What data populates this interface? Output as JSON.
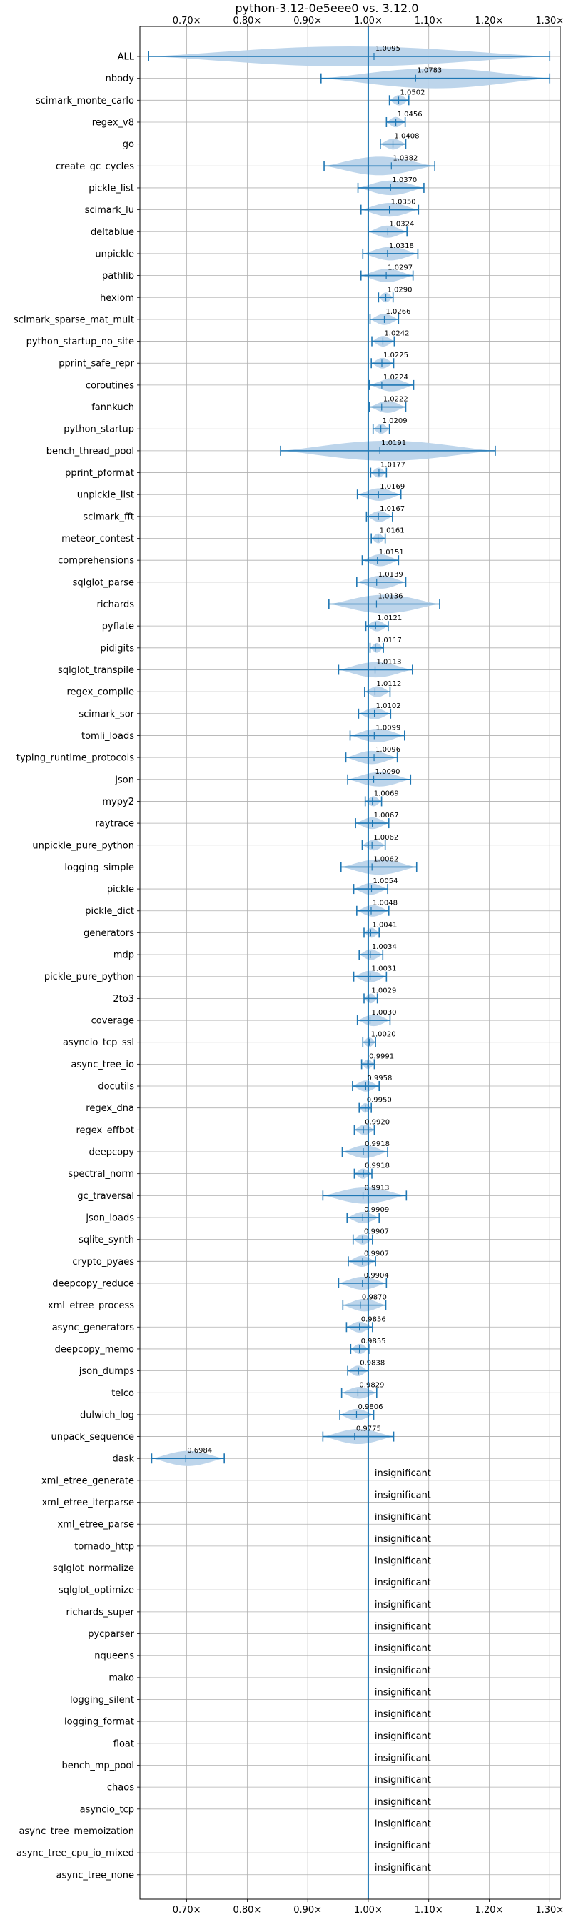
{
  "chart_data": {
    "type": "violin",
    "title": "python-3.12-0e5eee0 vs. 3.12.0",
    "xlabel": "",
    "ylabel": "",
    "xlim": [
      0.6226,
      1.3174
    ],
    "x_ticks": [
      0.7,
      0.8,
      0.9,
      1.0,
      1.1,
      1.2,
      1.3
    ],
    "x_tick_labels": [
      "0.70×",
      "0.80×",
      "0.90×",
      "1.00×",
      "1.10×",
      "1.20×",
      "1.30×"
    ],
    "x_tick_positions": [
      "top",
      "bottom"
    ],
    "reference_line": 1.0,
    "grid": true,
    "insignificant_label": "insignificant",
    "colors": {
      "violin": "#1f77b4",
      "violin_fill": "#b9d3ea",
      "grid": "#b0b0b0",
      "reference": "#1f77b4"
    },
    "benchmarks": [
      {
        "name": "ALL",
        "median": 1.0095,
        "min": 0.637,
        "max": 1.3,
        "label": "1.0095",
        "significant": true
      },
      {
        "name": "nbody",
        "median": 1.0783,
        "min": 0.922,
        "max": 1.3,
        "label": "1.0783",
        "significant": true
      },
      {
        "name": "scimark_monte_carlo",
        "median": 1.0502,
        "min": 1.035,
        "max": 1.067,
        "label": "1.0502",
        "significant": true
      },
      {
        "name": "regex_v8",
        "median": 1.0456,
        "min": 1.03,
        "max": 1.061,
        "label": "1.0456",
        "significant": true
      },
      {
        "name": "go",
        "median": 1.0408,
        "min": 1.02,
        "max": 1.062,
        "label": "1.0408",
        "significant": true
      },
      {
        "name": "create_gc_cycles",
        "median": 1.0382,
        "min": 0.927,
        "max": 1.11,
        "label": "1.0382",
        "significant": true
      },
      {
        "name": "pickle_list",
        "median": 1.037,
        "min": 0.983,
        "max": 1.092,
        "label": "1.0370",
        "significant": true
      },
      {
        "name": "scimark_lu",
        "median": 1.035,
        "min": 0.988,
        "max": 1.083,
        "label": "1.0350",
        "significant": true
      },
      {
        "name": "deltablue",
        "median": 1.0324,
        "min": 1.0,
        "max": 1.064,
        "label": "1.0324",
        "significant": true
      },
      {
        "name": "unpickle",
        "median": 1.0318,
        "min": 0.991,
        "max": 1.082,
        "label": "1.0318",
        "significant": true
      },
      {
        "name": "pathlib",
        "median": 1.0297,
        "min": 0.988,
        "max": 1.074,
        "label": "1.0297",
        "significant": true
      },
      {
        "name": "hexiom",
        "median": 1.029,
        "min": 1.017,
        "max": 1.041,
        "label": "1.0290",
        "significant": true
      },
      {
        "name": "scimark_sparse_mat_mult",
        "median": 1.0266,
        "min": 1.003,
        "max": 1.05,
        "label": "1.0266",
        "significant": true
      },
      {
        "name": "python_startup_no_site",
        "median": 1.0242,
        "min": 1.006,
        "max": 1.043,
        "label": "1.0242",
        "significant": true
      },
      {
        "name": "pprint_safe_repr",
        "median": 1.0225,
        "min": 1.005,
        "max": 1.042,
        "label": "1.0225",
        "significant": true
      },
      {
        "name": "coroutines",
        "median": 1.0224,
        "min": 1.002,
        "max": 1.075,
        "label": "1.0224",
        "significant": true
      },
      {
        "name": "fannkuch",
        "median": 1.0222,
        "min": 1.002,
        "max": 1.062,
        "label": "1.0222",
        "significant": true
      },
      {
        "name": "python_startup",
        "median": 1.0209,
        "min": 1.008,
        "max": 1.035,
        "label": "1.0209",
        "significant": true
      },
      {
        "name": "bench_thread_pool",
        "median": 1.0191,
        "min": 0.855,
        "max": 1.21,
        "label": "1.0191",
        "significant": true
      },
      {
        "name": "pprint_pformat",
        "median": 1.0177,
        "min": 1.004,
        "max": 1.03,
        "label": "1.0177",
        "significant": true
      },
      {
        "name": "unpickle_list",
        "median": 1.0169,
        "min": 0.982,
        "max": 1.054,
        "label": "1.0169",
        "significant": true
      },
      {
        "name": "scimark_fft",
        "median": 1.0167,
        "min": 0.997,
        "max": 1.04,
        "label": "1.0167",
        "significant": true
      },
      {
        "name": "meteor_contest",
        "median": 1.0161,
        "min": 1.005,
        "max": 1.028,
        "label": "1.0161",
        "significant": true
      },
      {
        "name": "comprehensions",
        "median": 1.0151,
        "min": 0.99,
        "max": 1.05,
        "label": "1.0151",
        "significant": true
      },
      {
        "name": "sqlglot_parse",
        "median": 1.0139,
        "min": 0.981,
        "max": 1.062,
        "label": "1.0139",
        "significant": true
      },
      {
        "name": "richards",
        "median": 1.0136,
        "min": 0.935,
        "max": 1.118,
        "label": "1.0136",
        "significant": true
      },
      {
        "name": "pyflate",
        "median": 1.0121,
        "min": 0.996,
        "max": 1.033,
        "label": "1.0121",
        "significant": true
      },
      {
        "name": "pidigits",
        "median": 1.0117,
        "min": 1.003,
        "max": 1.025,
        "label": "1.0117",
        "significant": true
      },
      {
        "name": "sqlglot_transpile",
        "median": 1.0113,
        "min": 0.951,
        "max": 1.073,
        "label": "1.0113",
        "significant": true
      },
      {
        "name": "regex_compile",
        "median": 1.0112,
        "min": 0.994,
        "max": 1.036,
        "label": "1.0112",
        "significant": true
      },
      {
        "name": "scimark_sor",
        "median": 1.0102,
        "min": 0.984,
        "max": 1.037,
        "label": "1.0102",
        "significant": true
      },
      {
        "name": "tomli_loads",
        "median": 1.0099,
        "min": 0.97,
        "max": 1.06,
        "label": "1.0099",
        "significant": true
      },
      {
        "name": "typing_runtime_protocols",
        "median": 1.0096,
        "min": 0.963,
        "max": 1.048,
        "label": "1.0096",
        "significant": true
      },
      {
        "name": "json",
        "median": 1.009,
        "min": 0.966,
        "max": 1.07,
        "label": "1.0090",
        "significant": true
      },
      {
        "name": "mypy2",
        "median": 1.0069,
        "min": 0.995,
        "max": 1.022,
        "label": "1.0069",
        "significant": true
      },
      {
        "name": "raytrace",
        "median": 1.0067,
        "min": 0.979,
        "max": 1.034,
        "label": "1.0067",
        "significant": true
      },
      {
        "name": "unpickle_pure_python",
        "median": 1.0062,
        "min": 0.99,
        "max": 1.028,
        "label": "1.0062",
        "significant": true
      },
      {
        "name": "logging_simple",
        "median": 1.0062,
        "min": 0.955,
        "max": 1.08,
        "label": "1.0062",
        "significant": true
      },
      {
        "name": "pickle",
        "median": 1.0054,
        "min": 0.976,
        "max": 1.032,
        "label": "1.0054",
        "significant": true
      },
      {
        "name": "pickle_dict",
        "median": 1.0048,
        "min": 0.981,
        "max": 1.034,
        "label": "1.0048",
        "significant": true
      },
      {
        "name": "generators",
        "median": 1.0041,
        "min": 0.993,
        "max": 1.018,
        "label": "1.0041",
        "significant": true
      },
      {
        "name": "mdp",
        "median": 1.0034,
        "min": 0.985,
        "max": 1.024,
        "label": "1.0034",
        "significant": true
      },
      {
        "name": "pickle_pure_python",
        "median": 1.0031,
        "min": 0.976,
        "max": 1.03,
        "label": "1.0031",
        "significant": true
      },
      {
        "name": "2to3",
        "median": 1.0029,
        "min": 0.993,
        "max": 1.015,
        "label": "1.0029",
        "significant": true
      },
      {
        "name": "coverage",
        "median": 1.003,
        "min": 0.982,
        "max": 1.036,
        "label": "1.0030",
        "significant": true
      },
      {
        "name": "asyncio_tcp_ssl",
        "median": 1.002,
        "min": 0.991,
        "max": 1.012,
        "label": "1.0020",
        "significant": true
      },
      {
        "name": "async_tree_io",
        "median": 0.9991,
        "min": 0.989,
        "max": 1.01,
        "label": "0.9991",
        "significant": true
      },
      {
        "name": "docutils",
        "median": 0.9958,
        "min": 0.974,
        "max": 1.018,
        "label": "0.9958",
        "significant": true
      },
      {
        "name": "regex_dna",
        "median": 0.995,
        "min": 0.985,
        "max": 1.005,
        "label": "0.9950",
        "significant": true
      },
      {
        "name": "regex_effbot",
        "median": 0.992,
        "min": 0.977,
        "max": 1.01,
        "label": "0.9920",
        "significant": true
      },
      {
        "name": "deepcopy",
        "median": 0.9918,
        "min": 0.957,
        "max": 1.032,
        "label": "0.9918",
        "significant": true
      },
      {
        "name": "spectral_norm",
        "median": 0.9918,
        "min": 0.977,
        "max": 1.006,
        "label": "0.9918",
        "significant": true
      },
      {
        "name": "gc_traversal",
        "median": 0.9913,
        "min": 0.925,
        "max": 1.063,
        "label": "0.9913",
        "significant": true
      },
      {
        "name": "json_loads",
        "median": 0.9909,
        "min": 0.965,
        "max": 1.018,
        "label": "0.9909",
        "significant": true
      },
      {
        "name": "sqlite_synth",
        "median": 0.9907,
        "min": 0.975,
        "max": 1.007,
        "label": "0.9907",
        "significant": true
      },
      {
        "name": "crypto_pyaes",
        "median": 0.9907,
        "min": 0.967,
        "max": 1.012,
        "label": "0.9907",
        "significant": true
      },
      {
        "name": "deepcopy_reduce",
        "median": 0.9904,
        "min": 0.951,
        "max": 1.03,
        "label": "0.9904",
        "significant": true
      },
      {
        "name": "xml_etree_process",
        "median": 0.987,
        "min": 0.958,
        "max": 1.029,
        "label": "0.9870",
        "significant": true
      },
      {
        "name": "async_generators",
        "median": 0.9856,
        "min": 0.964,
        "max": 1.007,
        "label": "0.9856",
        "significant": true
      },
      {
        "name": "deepcopy_memo",
        "median": 0.9855,
        "min": 0.971,
        "max": 1.001,
        "label": "0.9855",
        "significant": true
      },
      {
        "name": "json_dumps",
        "median": 0.9838,
        "min": 0.966,
        "max": 1.0,
        "label": "0.9838",
        "significant": true
      },
      {
        "name": "telco",
        "median": 0.9829,
        "min": 0.956,
        "max": 1.014,
        "label": "0.9829",
        "significant": true
      },
      {
        "name": "dulwich_log",
        "median": 0.9806,
        "min": 0.953,
        "max": 1.009,
        "label": "0.9806",
        "significant": true
      },
      {
        "name": "unpack_sequence",
        "median": 0.9775,
        "min": 0.925,
        "max": 1.042,
        "label": "0.9775",
        "significant": true
      },
      {
        "name": "dask",
        "median": 0.6984,
        "min": 0.642,
        "max": 0.762,
        "label": "0.6984",
        "significant": true
      },
      {
        "name": "xml_etree_generate",
        "significant": false
      },
      {
        "name": "xml_etree_iterparse",
        "significant": false
      },
      {
        "name": "xml_etree_parse",
        "significant": false
      },
      {
        "name": "tornado_http",
        "significant": false
      },
      {
        "name": "sqlglot_normalize",
        "significant": false
      },
      {
        "name": "sqlglot_optimize",
        "significant": false
      },
      {
        "name": "richards_super",
        "significant": false
      },
      {
        "name": "pycparser",
        "significant": false
      },
      {
        "name": "nqueens",
        "significant": false
      },
      {
        "name": "mako",
        "significant": false
      },
      {
        "name": "logging_silent",
        "significant": false
      },
      {
        "name": "logging_format",
        "significant": false
      },
      {
        "name": "float",
        "significant": false
      },
      {
        "name": "bench_mp_pool",
        "significant": false
      },
      {
        "name": "chaos",
        "significant": false
      },
      {
        "name": "asyncio_tcp",
        "significant": false
      },
      {
        "name": "async_tree_memoization",
        "significant": false
      },
      {
        "name": "async_tree_cpu_io_mixed",
        "significant": false
      },
      {
        "name": "async_tree_none",
        "significant": false
      }
    ]
  }
}
